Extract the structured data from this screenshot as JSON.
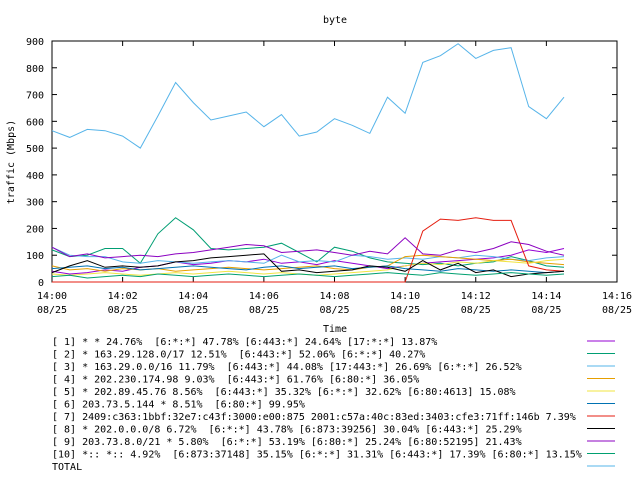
{
  "chart_data": {
    "type": "line",
    "title": "byte",
    "xlabel": "Time",
    "ylabel": "traffic (Mbps)",
    "ylim": [
      0,
      900
    ],
    "yticks": [
      0,
      100,
      200,
      300,
      400,
      500,
      600,
      700,
      800,
      900
    ],
    "xlim": [
      "14:00",
      "14:16"
    ],
    "xticks": [
      {
        "time": "14:00",
        "date": "08/25"
      },
      {
        "time": "14:02",
        "date": "08/25"
      },
      {
        "time": "14:04",
        "date": "08/25"
      },
      {
        "time": "14:06",
        "date": "08/25"
      },
      {
        "time": "14:08",
        "date": "08/25"
      },
      {
        "time": "14:10",
        "date": "08/25"
      },
      {
        "time": "14:12",
        "date": "08/25"
      },
      {
        "time": "14:14",
        "date": "08/25"
      },
      {
        "time": "14:16",
        "date": "08/25"
      }
    ],
    "grid": false,
    "legend_position": "bottom",
    "x": [
      "14:00:00",
      "14:00:30",
      "14:01:00",
      "14:01:30",
      "14:02:00",
      "14:02:30",
      "14:03:00",
      "14:03:30",
      "14:04:00",
      "14:04:30",
      "14:05:00",
      "14:05:30",
      "14:06:00",
      "14:06:30",
      "14:07:00",
      "14:07:30",
      "14:08:00",
      "14:08:30",
      "14:09:00",
      "14:09:30",
      "14:10:00",
      "14:10:30",
      "14:11:00",
      "14:11:30",
      "14:12:00",
      "14:12:30",
      "14:13:00",
      "14:13:30",
      "14:14:00",
      "14:14:30"
    ],
    "series": [
      {
        "name": "[ 1] * * 24.76%  [6:*:*] 47.78% [6:443:*] 24.64% [17:*:*] 13.87%",
        "color": "#9400d3",
        "values": [
          40,
          30,
          35,
          45,
          40,
          55,
          60,
          75,
          65,
          70,
          80,
          75,
          85,
          70,
          75,
          65,
          80,
          70,
          60,
          50,
          60,
          70,
          75,
          80,
          85,
          90,
          100,
          120,
          110,
          125
        ]
      },
      {
        "name": "[ 2] * 163.29.128.0/17 12.51%  [6:443:*] 52.06% [6:*:*] 40.27%",
        "color": "#009e73",
        "values": [
          120,
          95,
          100,
          125,
          125,
          70,
          180,
          240,
          195,
          125,
          120,
          125,
          130,
          145,
          110,
          75,
          130,
          115,
          90,
          75,
          70,
          65,
          70,
          60,
          70,
          75,
          95,
          80,
          60,
          55
        ]
      },
      {
        "name": "[ 3] * 163.29.0.0/16 11.79%  [6:443:*] 44.08% [17:443:*] 26.69% [6:*:*] 26.52%",
        "color": "#56b4e9",
        "values": [
          130,
          100,
          95,
          95,
          75,
          70,
          80,
          75,
          70,
          75,
          80,
          75,
          70,
          100,
          75,
          80,
          75,
          100,
          95,
          85,
          90,
          85,
          95,
          90,
          100,
          95,
          85,
          80,
          90,
          95
        ]
      },
      {
        "name": "[ 4] * 202.230.174.98 9.03%  [6:443:*] 61.76% [6:80:*] 36.05%",
        "color": "#e69f00",
        "values": [
          60,
          45,
          50,
          40,
          50,
          45,
          50,
          40,
          45,
          50,
          55,
          50,
          45,
          50,
          55,
          60,
          50,
          45,
          55,
          60,
          95,
          100,
          95,
          90,
          85,
          80,
          85,
          75,
          70,
          65
        ]
      },
      {
        "name": "[ 5] * 202.89.45.76 8.56%  [6:443:*] 35.32% [6:*:*] 32.62% [6:80:4613] 15.08%",
        "color": "#f0e442",
        "values": [
          30,
          25,
          30,
          35,
          30,
          25,
          30,
          35,
          30,
          35,
          40,
          35,
          30,
          35,
          30,
          25,
          30,
          35,
          40,
          45,
          60,
          70,
          65,
          75,
          70,
          80,
          75,
          70,
          80,
          85
        ]
      },
      {
        "name": "[ 6] 203.73.5.144 * 8.51%  [6:80:*] 99.95%",
        "color": "#0072b2",
        "values": [
          50,
          55,
          60,
          50,
          55,
          45,
          50,
          55,
          60,
          55,
          50,
          45,
          55,
          60,
          50,
          55,
          60,
          50,
          55,
          60,
          50,
          45,
          40,
          50,
          45,
          40,
          45,
          40,
          35,
          40
        ]
      },
      {
        "name": "[ 7] 2409:c363:1bbf:32e7:c43f:3000:e00:875 2001:c57a:40c:83ed:3403:cfe3:71ff:146b 7.39%",
        "color": "#e51e10",
        "values": [
          0,
          0,
          0,
          0,
          0,
          0,
          0,
          0,
          0,
          0,
          0,
          0,
          0,
          0,
          0,
          0,
          0,
          0,
          0,
          0,
          0,
          190,
          235,
          230,
          240,
          230,
          230,
          60,
          45,
          40
        ]
      },
      {
        "name": "[ 8] * 202.0.0.0/8 6.72%  [6:*:*] 43.78% [6:873:39256] 30.04% [6:443:*] 25.29%",
        "color": "#000000",
        "values": [
          35,
          60,
          80,
          55,
          60,
          55,
          60,
          75,
          80,
          90,
          95,
          100,
          105,
          40,
          45,
          35,
          40,
          45,
          60,
          55,
          40,
          80,
          45,
          70,
          35,
          45,
          20,
          30,
          35,
          40
        ]
      },
      {
        "name": "[ 9] 203.73.8.0/21 * 5.80%  [6:*:*] 53.19% [6:80:*] 25.24% [6:80:52195] 21.43%",
        "color": "#8b00c0",
        "values": [
          130,
          95,
          105,
          90,
          95,
          100,
          95,
          105,
          110,
          120,
          130,
          140,
          135,
          110,
          115,
          120,
          110,
          100,
          115,
          105,
          165,
          105,
          100,
          120,
          110,
          125,
          150,
          140,
          115,
          100
        ]
      },
      {
        "name": "[10] *:: *:: 4.92%  [6:873:37148] 35.15% [6:*:*] 31.31% [6:443:*] 17.39% [6:80:*] 13.15%",
        "color": "#00a070",
        "values": [
          20,
          25,
          15,
          20,
          25,
          20,
          30,
          25,
          20,
          25,
          30,
          25,
          20,
          25,
          30,
          25,
          20,
          25,
          30,
          35,
          30,
          25,
          35,
          30,
          25,
          30,
          35,
          30,
          25,
          30
        ]
      },
      {
        "name": "TOTAL",
        "color": "#56b4e9",
        "values": [
          565,
          540,
          570,
          565,
          545,
          500,
          620,
          745,
          670,
          605,
          620,
          635,
          580,
          625,
          545,
          560,
          610,
          585,
          555,
          690,
          630,
          820,
          845,
          890,
          835,
          865,
          875,
          655,
          610,
          690
        ]
      }
    ]
  }
}
